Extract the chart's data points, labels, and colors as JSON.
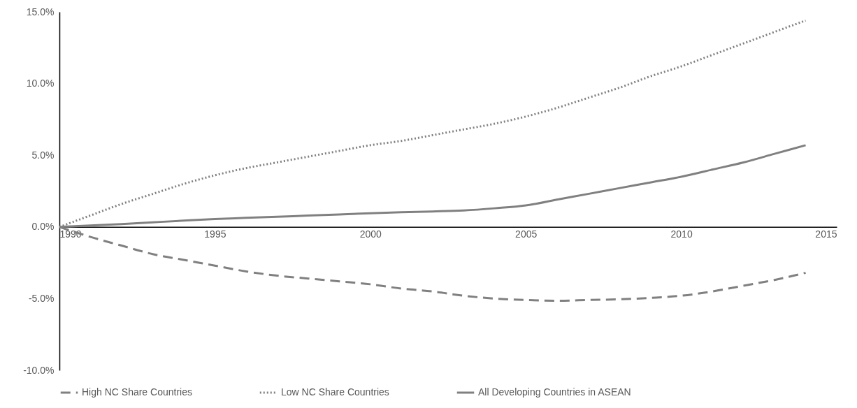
{
  "chart_data": {
    "type": "line",
    "x": [
      1990,
      1991,
      1992,
      1993,
      1994,
      1995,
      1996,
      1997,
      1998,
      1999,
      2000,
      2001,
      2002,
      2003,
      2004,
      2005,
      2006,
      2007,
      2008,
      2009,
      2010,
      2011,
      2012,
      2013,
      2014
    ],
    "series": [
      {
        "name": "High NC Share Countries",
        "color": "#808080",
        "line_style": "dashed",
        "values": [
          0,
          -0.7,
          -1.3,
          -1.9,
          -2.3,
          -2.7,
          -3.1,
          -3.4,
          -3.6,
          -3.8,
          -4.0,
          -4.3,
          -4.5,
          -4.8,
          -5.0,
          -5.1,
          -5.15,
          -5.1,
          -5.05,
          -4.95,
          -4.8,
          -4.5,
          -4.1,
          -3.7,
          -3.2
        ]
      },
      {
        "name": "Low NC Share Countries",
        "color": "#808080",
        "line_style": "dotted",
        "values": [
          0,
          0.8,
          1.6,
          2.3,
          3.0,
          3.6,
          4.1,
          4.5,
          4.9,
          5.3,
          5.7,
          6.0,
          6.4,
          6.8,
          7.2,
          7.7,
          8.3,
          9.0,
          9.7,
          10.5,
          11.2,
          12.0,
          12.8,
          13.6,
          14.4
        ]
      },
      {
        "name": "All Developing Countries in ASEAN",
        "color": "#808080",
        "line_style": "solid",
        "values": [
          0,
          0.1,
          0.2,
          0.32,
          0.44,
          0.55,
          0.63,
          0.71,
          0.79,
          0.87,
          0.95,
          1.02,
          1.08,
          1.15,
          1.3,
          1.5,
          1.9,
          2.3,
          2.7,
          3.1,
          3.5,
          4.0,
          4.5,
          5.1,
          5.7
        ]
      }
    ],
    "xlim": [
      1990,
      2015
    ],
    "xticks": [
      1990,
      1995,
      2000,
      2005,
      2010,
      2015
    ],
    "ylim": [
      -10,
      15
    ],
    "yticks": [
      {
        "value": -10,
        "label": "-10.0%"
      },
      {
        "value": -5,
        "label": "-5.0%"
      },
      {
        "value": 0,
        "label": "0.0%"
      },
      {
        "value": 5,
        "label": "5.0%"
      },
      {
        "value": 10,
        "label": "10.0%"
      },
      {
        "value": 15,
        "label": "15.0%"
      }
    ],
    "grid": false,
    "legend": "bottom"
  }
}
